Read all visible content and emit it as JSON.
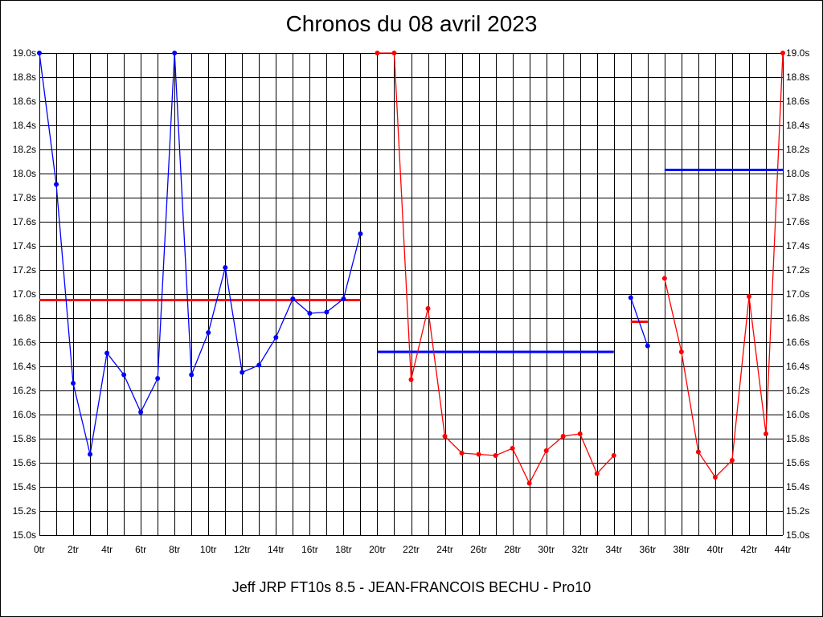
{
  "chart_data": {
    "type": "line",
    "title": "Chronos du 08 avril 2023",
    "footer": "Jeff JRP FT10s 8.5 - JEAN-FRANCOIS BECHU - Pro10",
    "xlabel": "",
    "ylabel": "",
    "xlim": [
      0,
      44
    ],
    "ylim": [
      15.0,
      19.0
    ],
    "grid": true,
    "legend": "none",
    "x_tick_labels": [
      "0tr",
      "2tr",
      "4tr",
      "6tr",
      "8tr",
      "10tr",
      "12tr",
      "14tr",
      "16tr",
      "18tr",
      "20tr",
      "22tr",
      "24tr",
      "26tr",
      "28tr",
      "30tr",
      "32tr",
      "34tr",
      "36tr",
      "38tr",
      "40tr",
      "42tr",
      "44tr"
    ],
    "y_tick_labels": [
      "15.0s",
      "15.2s",
      "15.4s",
      "15.6s",
      "15.8s",
      "16.0s",
      "16.2s",
      "16.4s",
      "16.6s",
      "16.8s",
      "17.0s",
      "17.2s",
      "17.4s",
      "17.6s",
      "17.8s",
      "18.0s",
      "18.2s",
      "18.4s",
      "18.6s",
      "18.8s",
      "19.0s"
    ],
    "series": [
      {
        "color": "#0000ff",
        "points": [
          [
            0,
            19.0
          ],
          [
            1,
            17.91
          ],
          [
            2,
            16.26
          ],
          [
            3,
            15.67
          ],
          [
            4,
            16.51
          ],
          [
            5,
            16.33
          ],
          [
            6,
            16.02
          ],
          [
            7,
            16.3
          ],
          [
            8,
            19.0
          ],
          [
            9,
            16.33
          ],
          [
            10,
            16.68
          ],
          [
            11,
            17.22
          ],
          [
            12,
            16.35
          ],
          [
            13,
            16.41
          ],
          [
            14,
            16.64
          ],
          [
            15,
            16.96
          ],
          [
            16,
            16.84
          ],
          [
            17,
            16.85
          ],
          [
            18,
            16.96
          ],
          [
            19,
            17.5
          ]
        ]
      },
      {
        "color": "#ff0000",
        "points": [
          [
            20,
            19.0
          ],
          [
            21,
            19.0
          ],
          [
            22,
            16.29
          ],
          [
            23,
            16.88
          ],
          [
            24,
            15.82
          ],
          [
            25,
            15.68
          ],
          [
            26,
            15.67
          ],
          [
            27,
            15.66
          ],
          [
            28,
            15.72
          ],
          [
            29,
            15.43
          ],
          [
            30,
            15.7
          ],
          [
            31,
            15.82
          ],
          [
            32,
            15.84
          ],
          [
            33,
            15.51
          ],
          [
            34,
            15.66
          ]
        ]
      },
      {
        "color": "#0000ff",
        "points": [
          [
            35,
            16.97
          ],
          [
            36,
            16.57
          ]
        ]
      },
      {
        "color": "#ff0000",
        "points": [
          [
            37,
            17.13
          ],
          [
            38,
            16.52
          ],
          [
            39,
            15.69
          ],
          [
            40,
            15.48
          ],
          [
            41,
            15.62
          ],
          [
            42,
            16.98
          ],
          [
            43,
            15.84
          ],
          [
            44,
            19.0
          ]
        ]
      }
    ],
    "average_lines": [
      {
        "color": "#ff0000",
        "x_start": 0,
        "x_end": 19,
        "y": 16.95
      },
      {
        "color": "#0000ff",
        "x_start": 20,
        "x_end": 34,
        "y": 16.52
      },
      {
        "color": "#ff0000",
        "x_start": 35,
        "x_end": 36,
        "y": 16.77
      },
      {
        "color": "#0000ff",
        "x_start": 37,
        "x_end": 44,
        "y": 18.03
      }
    ]
  }
}
